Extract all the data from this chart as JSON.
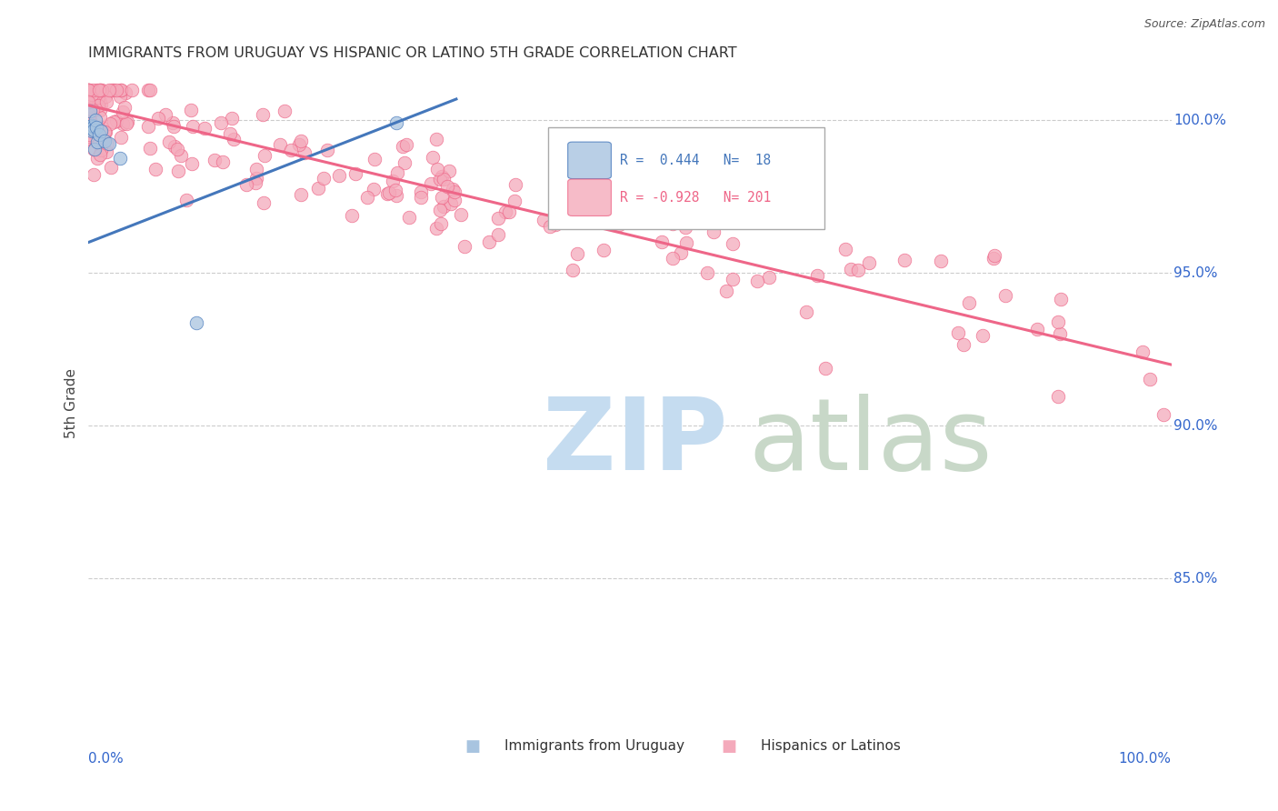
{
  "title": "IMMIGRANTS FROM URUGUAY VS HISPANIC OR LATINO 5TH GRADE CORRELATION CHART",
  "source": "Source: ZipAtlas.com",
  "ylabel": "5th Grade",
  "ytick_labels": [
    "100.0%",
    "95.0%",
    "90.0%",
    "85.0%"
  ],
  "ytick_positions": [
    1.0,
    0.95,
    0.9,
    0.85
  ],
  "blue_color": "#A8C4E0",
  "pink_color": "#F4AABB",
  "blue_line_color": "#4477BB",
  "pink_line_color": "#EE6688",
  "blue_R": 0.444,
  "pink_R": -0.928,
  "blue_N": 18,
  "pink_N": 201,
  "background_color": "#FFFFFF",
  "grid_color": "#CCCCCC",
  "title_color": "#333333",
  "axis_label_color": "#3366CC",
  "ylim_min": 0.8,
  "ylim_max": 1.015,
  "xlim_min": 0.0,
  "xlim_max": 1.0,
  "blue_line_x0": 0.0,
  "blue_line_x1": 0.34,
  "blue_line_y0": 0.96,
  "blue_line_y1": 1.007,
  "pink_line_x0": 0.0,
  "pink_line_x1": 1.0,
  "pink_line_y0": 1.005,
  "pink_line_y1": 0.92
}
